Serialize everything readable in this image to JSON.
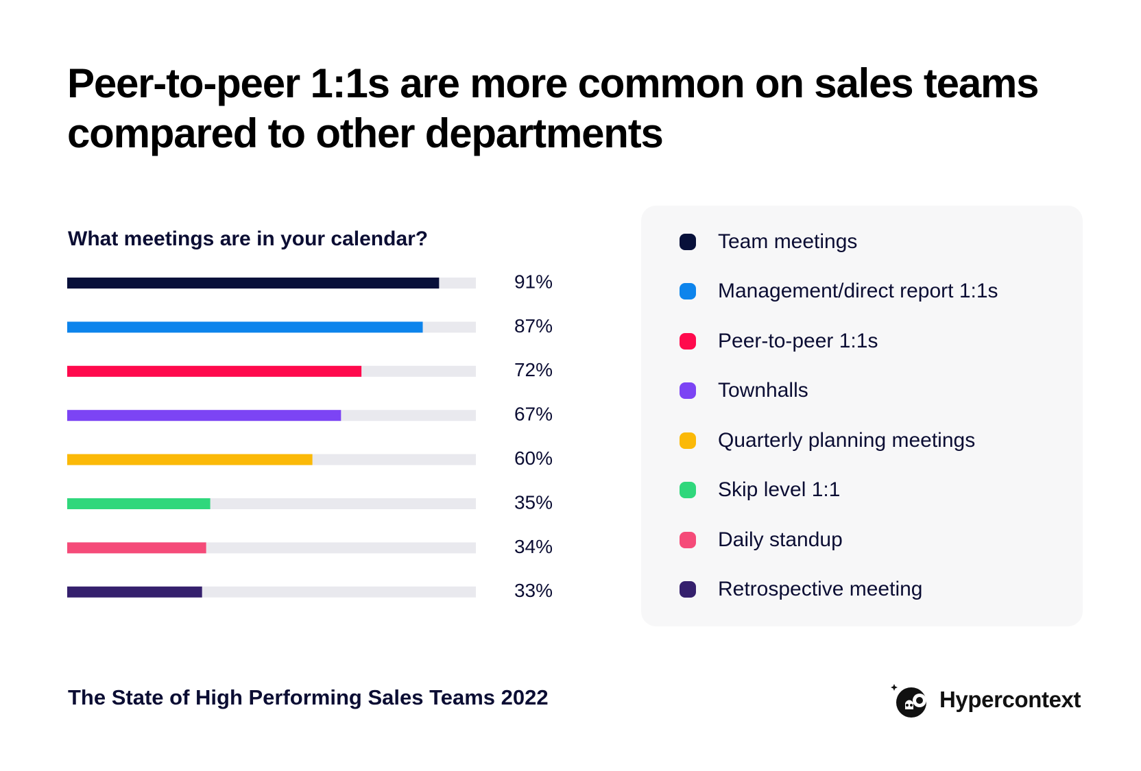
{
  "headline": "Peer-to-peer 1:1s are more common on sales teams compared to other departments",
  "footer_text": "The State of High Performing Sales Teams 2022",
  "brand": {
    "name": "Hypercontext",
    "icon": "hypercontext-logo-icon"
  },
  "colors": {
    "track": "#e9e9ee",
    "text": "#0b0d33",
    "legend_background": "#f7f7f8"
  },
  "chart_data": {
    "type": "bar",
    "orientation": "horizontal",
    "title": "What meetings are in your calendar?",
    "xlabel": "",
    "ylabel": "",
    "xlim": [
      0,
      100
    ],
    "grid": false,
    "legend_position": "right",
    "value_suffix": "%",
    "categories": [
      "Team meetings",
      "Management/direct report 1:1s",
      "Peer-to-peer 1:1s",
      "Townhalls",
      "Quarterly planning meetings",
      "Skip level 1:1",
      "Daily standup",
      "Retrospective meeting"
    ],
    "values": [
      91,
      87,
      72,
      67,
      60,
      35,
      34,
      33
    ],
    "labels": [
      "91%",
      "87%",
      "72%",
      "67%",
      "60%",
      "35%",
      "34%",
      "33%"
    ],
    "colors": [
      "#08103a",
      "#0d84ec",
      "#ff0a4d",
      "#7c44f4",
      "#fbb908",
      "#30d77c",
      "#f54b79",
      "#35206d"
    ]
  }
}
